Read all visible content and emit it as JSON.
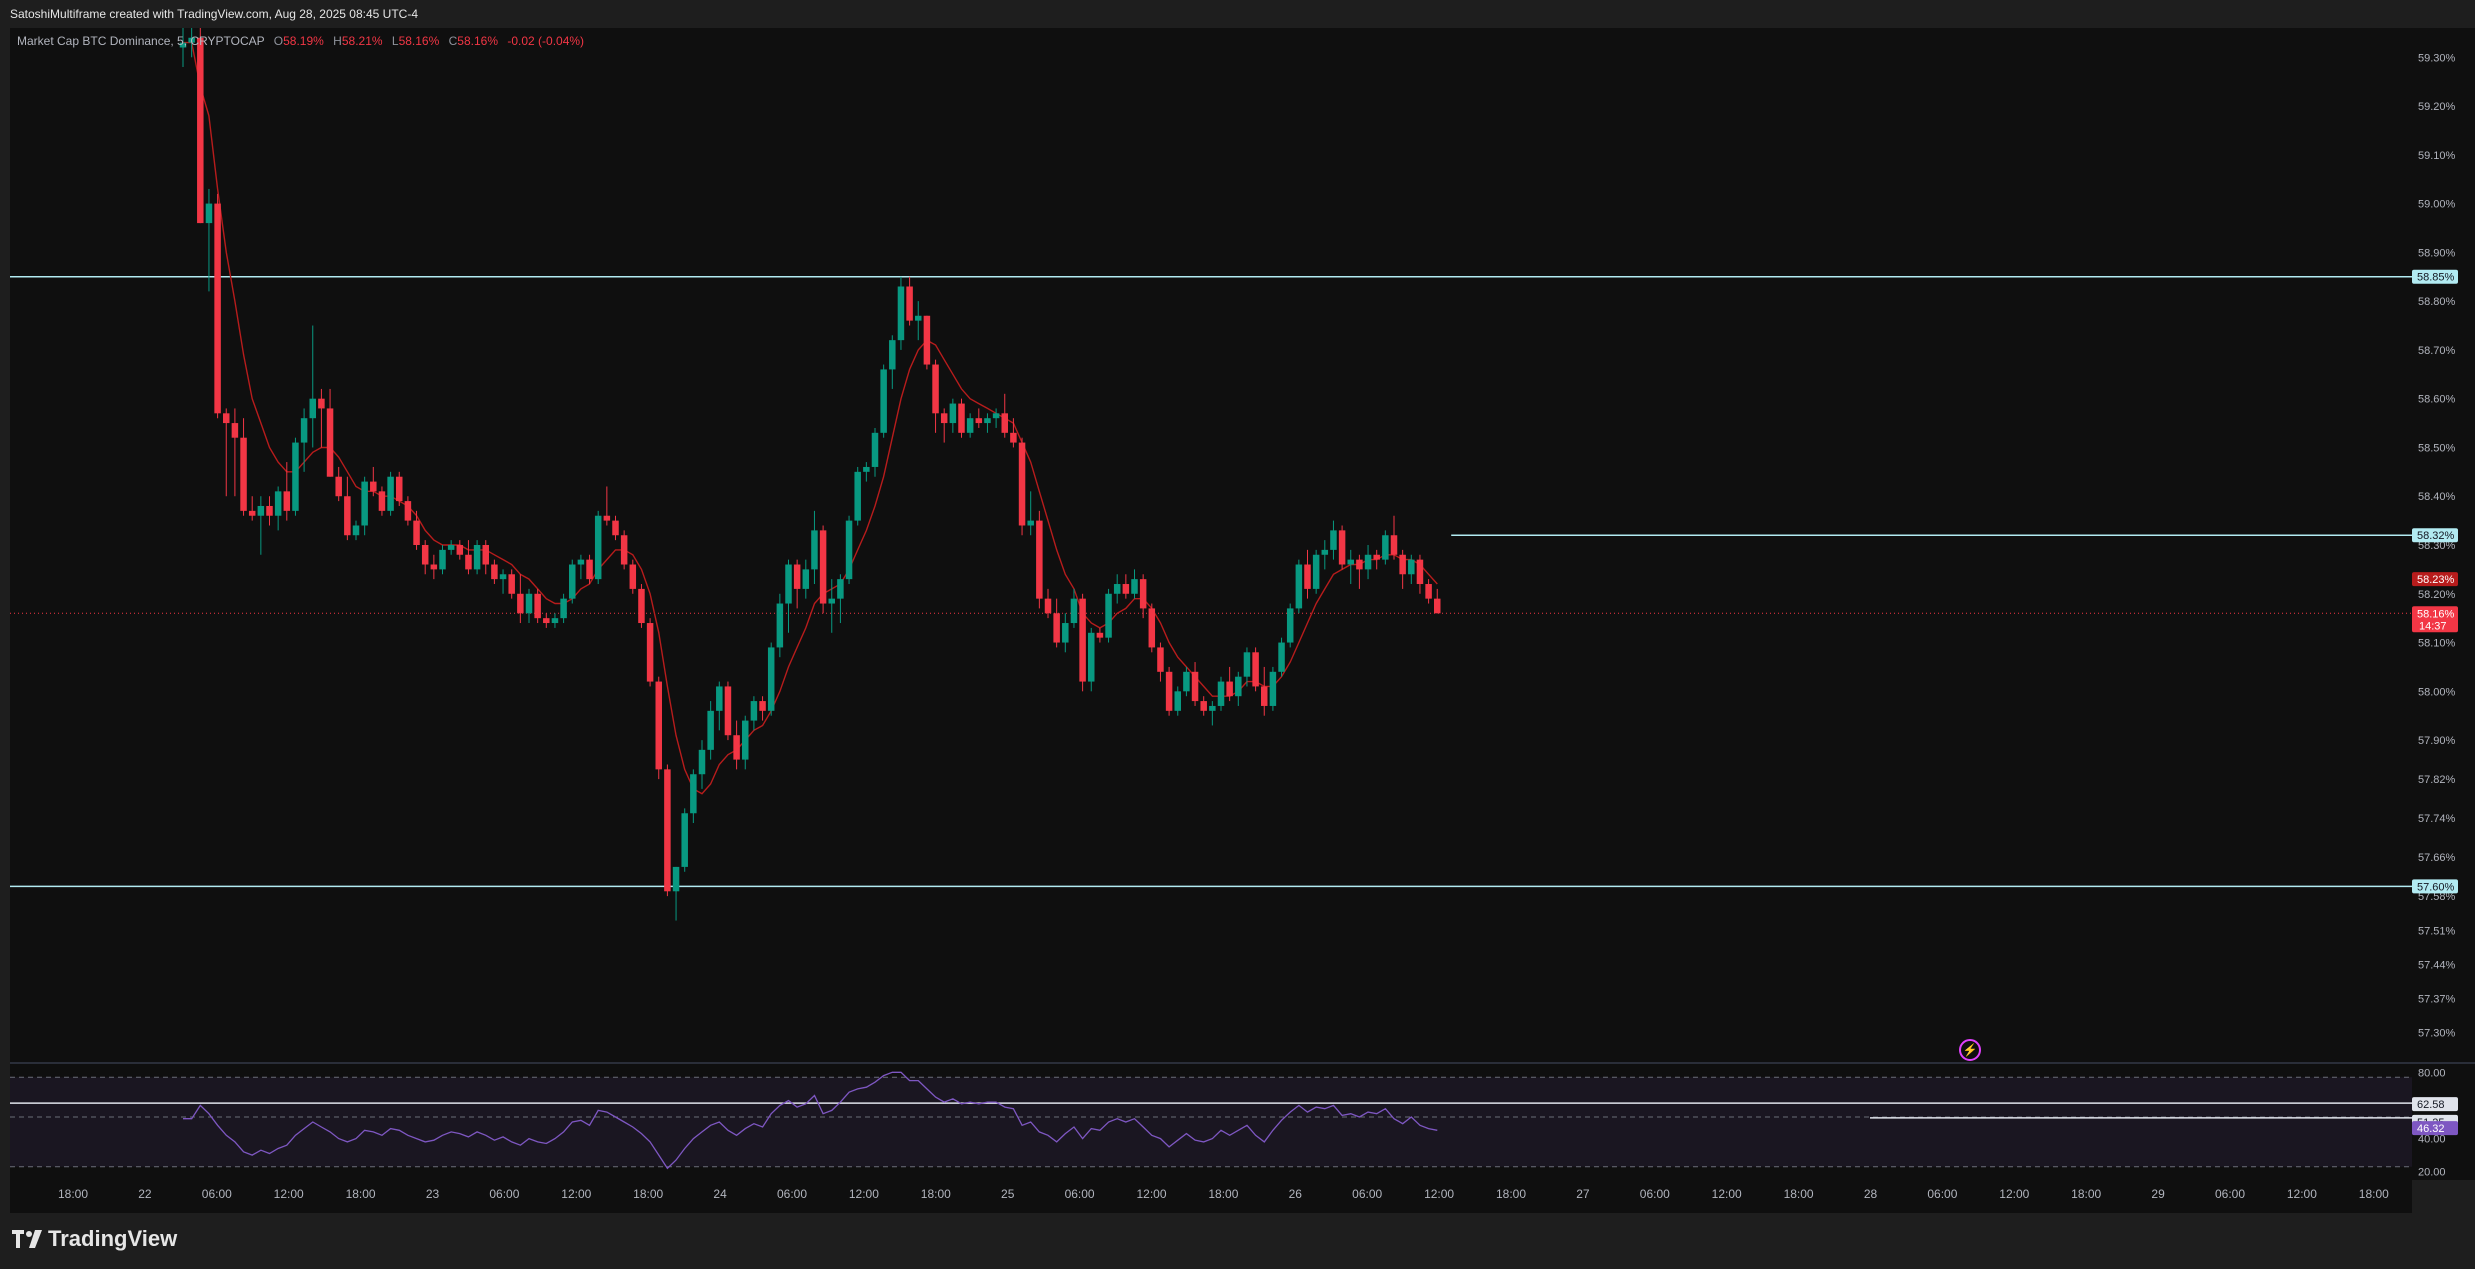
{
  "header": {
    "credit": "SatoshiMultiframe created with TradingView.com, Aug 28, 2025 08:45 UTC-4"
  },
  "legend": {
    "symbol": "Market Cap BTC Dominance, 5, CRYPTOCAP",
    "o_label": "O",
    "o": "58.19%",
    "h_label": "H",
    "h": "58.21%",
    "l_label": "L",
    "l": "58.16%",
    "c_label": "C",
    "c": "58.16%",
    "change": "-0.02 (-0.04%)"
  },
  "footer": {
    "logo_text": "TradingView"
  },
  "colors": {
    "up": "#089981",
    "down": "#f23645",
    "ma": "#b71c1c",
    "hline": "#b2ebf2",
    "rsi": "#7e57c2",
    "bg": "#0f0f0f"
  },
  "chart_data": {
    "type": "candlestick",
    "ylim": [
      57.24,
      59.36
    ],
    "y_ticks": [
      "59.30%",
      "59.20%",
      "59.10%",
      "59.00%",
      "58.90%",
      "58.80%",
      "58.70%",
      "58.60%",
      "58.50%",
      "58.40%",
      "58.30%",
      "58.20%",
      "58.10%",
      "58.00%",
      "57.90%",
      "57.82%",
      "57.74%",
      "57.66%",
      "57.58%",
      "57.51%",
      "57.44%",
      "57.37%",
      "57.30%"
    ],
    "y_tick_values": [
      59.3,
      59.2,
      59.1,
      59.0,
      58.9,
      58.8,
      58.7,
      58.6,
      58.5,
      58.4,
      58.3,
      58.2,
      58.1,
      58.0,
      57.9,
      57.82,
      57.74,
      57.66,
      57.58,
      57.51,
      57.44,
      57.37,
      57.3
    ],
    "x_ticks": [
      "18:00",
      "22",
      "06:00",
      "12:00",
      "18:00",
      "23",
      "06:00",
      "12:00",
      "18:00",
      "24",
      "06:00",
      "12:00",
      "18:00",
      "25",
      "06:00",
      "12:00",
      "18:00",
      "26",
      "06:00",
      "12:00",
      "18:00",
      "27",
      "06:00",
      "12:00",
      "18:00",
      "28",
      "06:00",
      "12:00",
      "18:00",
      "29",
      "06:00",
      "12:00",
      "18:00"
    ],
    "price_labels": [
      {
        "text": "58.85%",
        "value": 58.85,
        "style": "hline"
      },
      {
        "text": "58.32%",
        "value": 58.32,
        "style": "hline"
      },
      {
        "text": "58.23%",
        "value": 58.23,
        "style": "high"
      },
      {
        "text": "58.16%",
        "value": 58.16,
        "style": "last",
        "sub": "14:37"
      },
      {
        "text": "57.60%",
        "value": 57.6,
        "style": "hline"
      }
    ],
    "horizontal_lines": [
      {
        "value": 58.85,
        "from": 0,
        "to": 1
      },
      {
        "value": 58.32,
        "from": 0.6,
        "to": 1
      },
      {
        "value": 57.6,
        "from": 0,
        "to": 1
      }
    ],
    "last_price": 58.16,
    "ohlc": [
      [
        59.32,
        59.36,
        59.28,
        59.33
      ],
      [
        59.33,
        59.36,
        59.3,
        59.34
      ],
      [
        59.34,
        59.36,
        58.96,
        58.96
      ],
      [
        58.96,
        59.03,
        58.82,
        59.0
      ],
      [
        59.0,
        59.02,
        58.56,
        58.57
      ],
      [
        58.57,
        58.58,
        58.4,
        58.55
      ],
      [
        58.55,
        58.58,
        58.4,
        58.52
      ],
      [
        58.52,
        58.56,
        58.36,
        58.37
      ],
      [
        58.37,
        58.4,
        58.35,
        58.36
      ],
      [
        58.36,
        58.4,
        58.28,
        58.38
      ],
      [
        58.38,
        58.4,
        58.34,
        58.36
      ],
      [
        58.36,
        58.42,
        58.33,
        58.41
      ],
      [
        58.41,
        58.47,
        58.35,
        58.37
      ],
      [
        58.37,
        58.52,
        58.36,
        58.51
      ],
      [
        58.51,
        58.58,
        58.45,
        58.56
      ],
      [
        58.56,
        58.75,
        58.5,
        58.6
      ],
      [
        58.6,
        58.62,
        58.5,
        58.58
      ],
      [
        58.58,
        58.62,
        58.44,
        58.44
      ],
      [
        58.44,
        58.46,
        58.39,
        58.4
      ],
      [
        58.4,
        58.44,
        58.31,
        58.32
      ],
      [
        58.32,
        58.35,
        58.31,
        58.34
      ],
      [
        58.34,
        58.44,
        58.32,
        58.43
      ],
      [
        58.43,
        58.46,
        58.4,
        58.41
      ],
      [
        58.41,
        58.42,
        58.36,
        58.37
      ],
      [
        58.37,
        58.45,
        58.36,
        58.44
      ],
      [
        58.44,
        58.45,
        58.38,
        58.39
      ],
      [
        58.39,
        58.4,
        58.34,
        58.35
      ],
      [
        58.35,
        58.37,
        58.29,
        58.3
      ],
      [
        58.3,
        58.31,
        58.24,
        58.26
      ],
      [
        58.26,
        58.28,
        58.23,
        58.25
      ],
      [
        58.25,
        58.3,
        58.24,
        58.29
      ],
      [
        58.29,
        58.31,
        58.28,
        58.3
      ],
      [
        58.3,
        58.31,
        58.27,
        58.28
      ],
      [
        58.28,
        58.31,
        58.24,
        58.25
      ],
      [
        58.25,
        58.31,
        58.24,
        58.3
      ],
      [
        58.3,
        58.31,
        58.24,
        58.26
      ],
      [
        58.26,
        58.27,
        58.22,
        58.23
      ],
      [
        58.23,
        58.25,
        58.2,
        58.24
      ],
      [
        58.24,
        58.25,
        58.19,
        58.2
      ],
      [
        58.2,
        58.24,
        58.14,
        58.16
      ],
      [
        58.16,
        58.21,
        58.14,
        58.2
      ],
      [
        58.2,
        58.21,
        58.14,
        58.15
      ],
      [
        58.15,
        58.16,
        58.13,
        58.14
      ],
      [
        58.14,
        58.16,
        58.13,
        58.15
      ],
      [
        58.15,
        58.2,
        58.14,
        58.19
      ],
      [
        58.19,
        58.27,
        58.18,
        58.26
      ],
      [
        58.26,
        58.28,
        58.23,
        58.27
      ],
      [
        58.27,
        58.28,
        58.22,
        58.23
      ],
      [
        58.23,
        58.37,
        58.22,
        58.36
      ],
      [
        58.36,
        58.42,
        58.34,
        58.35
      ],
      [
        58.35,
        58.36,
        58.31,
        58.32
      ],
      [
        58.32,
        58.33,
        58.25,
        58.26
      ],
      [
        58.26,
        58.27,
        58.2,
        58.21
      ],
      [
        58.21,
        58.22,
        58.13,
        58.14
      ],
      [
        58.14,
        58.15,
        58.01,
        58.02
      ],
      [
        58.02,
        58.03,
        57.82,
        57.84
      ],
      [
        57.84,
        57.85,
        57.58,
        57.59
      ],
      [
        57.59,
        57.64,
        57.53,
        57.64
      ],
      [
        57.64,
        57.76,
        57.63,
        57.75
      ],
      [
        57.75,
        57.84,
        57.73,
        57.83
      ],
      [
        57.83,
        57.9,
        57.8,
        57.88
      ],
      [
        57.88,
        57.98,
        57.86,
        57.96
      ],
      [
        57.96,
        58.02,
        57.92,
        58.01
      ],
      [
        58.01,
        58.02,
        57.9,
        57.91
      ],
      [
        57.91,
        57.94,
        57.84,
        57.86
      ],
      [
        57.86,
        57.95,
        57.84,
        57.94
      ],
      [
        57.94,
        57.99,
        57.92,
        57.98
      ],
      [
        57.98,
        57.99,
        57.94,
        57.96
      ],
      [
        57.96,
        58.1,
        57.95,
        58.09
      ],
      [
        58.09,
        58.2,
        58.07,
        58.18
      ],
      [
        58.18,
        58.27,
        58.12,
        58.26
      ],
      [
        58.26,
        58.27,
        58.17,
        58.21
      ],
      [
        58.21,
        58.27,
        58.19,
        58.25
      ],
      [
        58.25,
        58.37,
        58.22,
        58.33
      ],
      [
        58.33,
        58.34,
        58.16,
        58.18
      ],
      [
        58.18,
        58.23,
        58.12,
        58.19
      ],
      [
        58.19,
        58.24,
        58.14,
        58.23
      ],
      [
        58.23,
        58.36,
        58.22,
        58.35
      ],
      [
        58.35,
        58.46,
        58.34,
        58.45
      ],
      [
        58.45,
        58.47,
        58.43,
        58.46
      ],
      [
        58.46,
        58.54,
        58.44,
        58.53
      ],
      [
        58.53,
        58.67,
        58.52,
        58.66
      ],
      [
        58.66,
        58.73,
        58.62,
        58.72
      ],
      [
        58.72,
        58.85,
        58.7,
        58.83
      ],
      [
        58.83,
        58.85,
        58.75,
        58.76
      ],
      [
        58.76,
        58.8,
        58.72,
        58.77
      ],
      [
        58.77,
        58.77,
        58.66,
        58.67
      ],
      [
        58.67,
        58.68,
        58.53,
        58.57
      ],
      [
        58.57,
        58.58,
        58.51,
        58.55
      ],
      [
        58.55,
        58.6,
        58.53,
        58.59
      ],
      [
        58.59,
        58.6,
        58.52,
        58.53
      ],
      [
        58.53,
        58.57,
        58.52,
        58.56
      ],
      [
        58.56,
        58.58,
        58.54,
        58.55
      ],
      [
        58.55,
        58.57,
        58.53,
        58.56
      ],
      [
        58.56,
        58.58,
        58.54,
        58.57
      ],
      [
        58.57,
        58.61,
        58.52,
        58.53
      ],
      [
        58.53,
        58.56,
        58.5,
        58.51
      ],
      [
        58.51,
        58.52,
        58.32,
        58.34
      ],
      [
        58.34,
        58.41,
        58.32,
        58.35
      ],
      [
        58.35,
        58.37,
        58.17,
        58.19
      ],
      [
        58.19,
        58.21,
        58.15,
        58.16
      ],
      [
        58.16,
        58.19,
        58.09,
        58.1
      ],
      [
        58.1,
        58.16,
        58.08,
        58.14
      ],
      [
        58.14,
        58.21,
        58.13,
        58.19
      ],
      [
        58.19,
        58.2,
        58.0,
        58.02
      ],
      [
        58.02,
        58.13,
        58.0,
        58.12
      ],
      [
        58.12,
        58.13,
        58.1,
        58.11
      ],
      [
        58.11,
        58.21,
        58.1,
        58.2
      ],
      [
        58.2,
        58.24,
        58.18,
        58.22
      ],
      [
        58.22,
        58.24,
        58.19,
        58.2
      ],
      [
        58.2,
        58.25,
        58.19,
        58.23
      ],
      [
        58.23,
        58.24,
        58.15,
        58.17
      ],
      [
        58.17,
        58.18,
        58.08,
        58.09
      ],
      [
        58.09,
        58.1,
        58.02,
        58.04
      ],
      [
        58.04,
        58.05,
        57.95,
        57.96
      ],
      [
        57.96,
        58.01,
        57.95,
        58.0
      ],
      [
        58.0,
        58.05,
        57.99,
        58.04
      ],
      [
        58.04,
        58.06,
        57.97,
        57.98
      ],
      [
        57.98,
        57.99,
        57.95,
        57.96
      ],
      [
        57.96,
        57.98,
        57.93,
        57.97
      ],
      [
        57.97,
        58.03,
        57.96,
        58.02
      ],
      [
        58.02,
        58.05,
        57.98,
        57.99
      ],
      [
        57.99,
        58.04,
        57.97,
        58.03
      ],
      [
        58.03,
        58.09,
        58.01,
        58.08
      ],
      [
        58.08,
        58.09,
        58.0,
        58.01
      ],
      [
        58.01,
        58.05,
        57.95,
        57.97
      ],
      [
        57.97,
        58.05,
        57.96,
        58.04
      ],
      [
        58.04,
        58.11,
        58.03,
        58.1
      ],
      [
        58.1,
        58.18,
        58.09,
        58.17
      ],
      [
        58.17,
        58.27,
        58.16,
        58.26
      ],
      [
        58.26,
        58.29,
        58.19,
        58.21
      ],
      [
        58.21,
        58.29,
        58.2,
        58.28
      ],
      [
        58.28,
        58.31,
        58.25,
        58.29
      ],
      [
        58.29,
        58.35,
        58.27,
        58.33
      ],
      [
        58.33,
        58.34,
        58.25,
        58.26
      ],
      [
        58.26,
        58.29,
        58.22,
        58.27
      ],
      [
        58.27,
        58.28,
        58.21,
        58.25
      ],
      [
        58.25,
        58.3,
        58.23,
        58.28
      ],
      [
        58.28,
        58.29,
        58.25,
        58.27
      ],
      [
        58.27,
        58.33,
        58.26,
        58.32
      ],
      [
        58.32,
        58.36,
        58.27,
        58.28
      ],
      [
        58.28,
        58.29,
        58.21,
        58.24
      ],
      [
        58.24,
        58.28,
        58.22,
        58.27
      ],
      [
        58.27,
        58.28,
        58.2,
        58.22
      ],
      [
        58.22,
        58.23,
        58.18,
        58.19
      ],
      [
        58.19,
        58.21,
        58.16,
        58.16
      ]
    ],
    "ma": [
      59.33,
      59.33,
      59.24,
      59.18,
      59.03,
      58.9,
      58.8,
      58.69,
      58.6,
      58.55,
      58.5,
      58.47,
      58.45,
      58.45,
      58.47,
      58.49,
      58.5,
      58.5,
      58.48,
      58.45,
      58.42,
      58.41,
      58.41,
      58.4,
      58.4,
      58.39,
      58.38,
      58.36,
      58.33,
      58.31,
      58.3,
      58.3,
      58.3,
      58.29,
      58.29,
      58.29,
      58.28,
      58.27,
      58.26,
      58.24,
      58.23,
      58.21,
      58.19,
      58.18,
      58.18,
      58.19,
      58.21,
      58.22,
      58.25,
      58.27,
      58.29,
      58.29,
      58.28,
      58.25,
      58.2,
      58.12,
      58.01,
      57.91,
      57.84,
      57.8,
      57.79,
      57.81,
      57.85,
      57.87,
      57.88,
      57.9,
      57.92,
      57.93,
      57.96,
      58.0,
      58.05,
      58.09,
      58.13,
      58.18,
      58.2,
      58.21,
      58.22,
      58.25,
      58.29,
      58.33,
      58.38,
      58.44,
      58.52,
      58.6,
      58.66,
      58.7,
      58.72,
      58.71,
      58.68,
      58.65,
      58.62,
      58.6,
      58.59,
      58.58,
      58.57,
      58.56,
      58.55,
      58.51,
      58.47,
      58.41,
      58.35,
      58.29,
      58.24,
      58.21,
      58.16,
      58.14,
      58.13,
      58.14,
      58.16,
      58.17,
      58.19,
      58.19,
      58.17,
      58.14,
      58.1,
      58.07,
      58.05,
      58.03,
      58.01,
      57.99,
      57.99,
      57.99,
      58.0,
      58.02,
      58.02,
      58.01,
      58.01,
      58.03,
      58.06,
      58.1,
      58.14,
      58.18,
      58.21,
      58.24,
      58.25,
      58.26,
      58.26,
      58.27,
      58.27,
      58.28,
      58.28,
      58.27,
      58.27,
      58.26,
      58.24,
      58.22
    ],
    "rsi": {
      "ylim": [
        15,
        85
      ],
      "ticks": [
        "80.00",
        "40.00",
        "20.00"
      ],
      "tick_values": [
        80,
        40,
        20
      ],
      "bands": [
        40,
        60
      ],
      "labels": [
        {
          "text": "62.58",
          "value": 62.58
        },
        {
          "text": "51.25",
          "value": 51.25
        },
        {
          "text": "46.32",
          "value": 46.32
        }
      ],
      "level_line": 51.25,
      "values": [
        52,
        52,
        60,
        55,
        48,
        42,
        38,
        32,
        30,
        33,
        31,
        34,
        36,
        42,
        46,
        50,
        47,
        44,
        40,
        38,
        40,
        45,
        44,
        42,
        46,
        45,
        42,
        40,
        38,
        39,
        42,
        44,
        43,
        41,
        44,
        42,
        39,
        41,
        38,
        36,
        40,
        38,
        37,
        40,
        44,
        50,
        51,
        48,
        57,
        56,
        53,
        50,
        47,
        43,
        38,
        30,
        22,
        27,
        34,
        40,
        44,
        48,
        50,
        45,
        42,
        46,
        49,
        47,
        55,
        60,
        63,
        59,
        61,
        66,
        55,
        57,
        62,
        68,
        70,
        71,
        74,
        78,
        80,
        80,
        75,
        75,
        70,
        65,
        62,
        64,
        61,
        62,
        61,
        62,
        62,
        59,
        58,
        48,
        50,
        44,
        42,
        38,
        43,
        47,
        40,
        46,
        45,
        50,
        52,
        50,
        52,
        47,
        42,
        40,
        35,
        39,
        43,
        39,
        38,
        40,
        45,
        42,
        45,
        48,
        42,
        38,
        45,
        51,
        56,
        60,
        56,
        59,
        58,
        60,
        54,
        55,
        53,
        56,
        55,
        58,
        52,
        49,
        53,
        48,
        46,
        45
      ]
    }
  }
}
